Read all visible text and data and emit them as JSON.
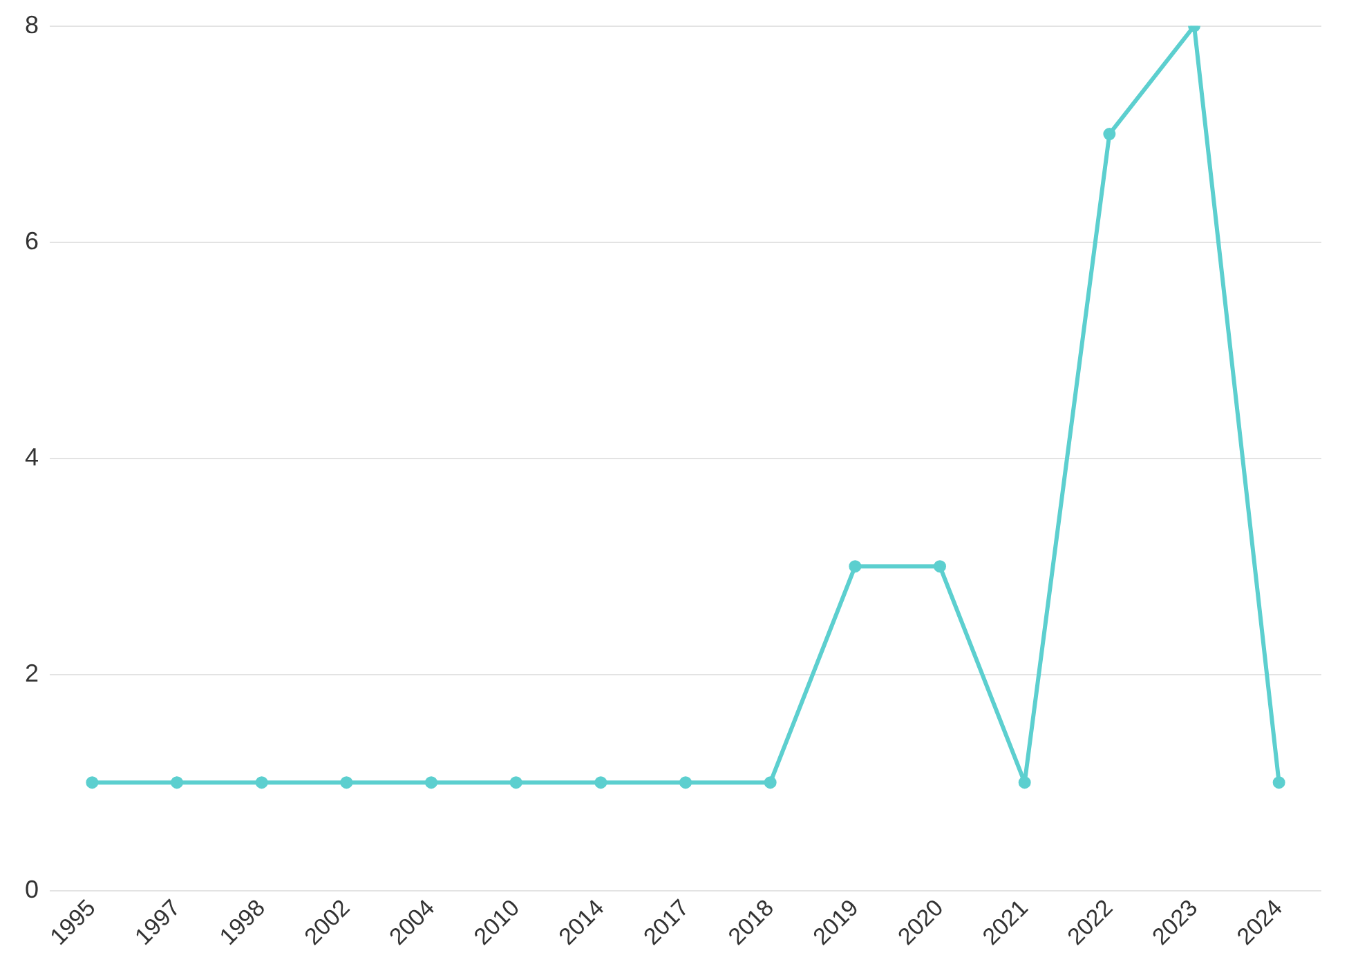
{
  "chart_data": {
    "type": "line",
    "categories": [
      "1995",
      "1997",
      "1998",
      "2002",
      "2004",
      "2010",
      "2014",
      "2017",
      "2018",
      "2019",
      "2020",
      "2021",
      "2022",
      "2023",
      "2024"
    ],
    "series": [
      {
        "color": "#5ccfcf",
        "values": [
          1,
          1,
          1,
          1,
          1,
          1,
          1,
          1,
          1,
          3,
          3,
          1,
          7,
          8,
          1
        ]
      }
    ],
    "ylim": [
      0,
      8
    ],
    "yticks": [
      0,
      2,
      4,
      6,
      8
    ],
    "grid": "y",
    "legend": false,
    "marker": "circle",
    "line_style": "solid"
  }
}
